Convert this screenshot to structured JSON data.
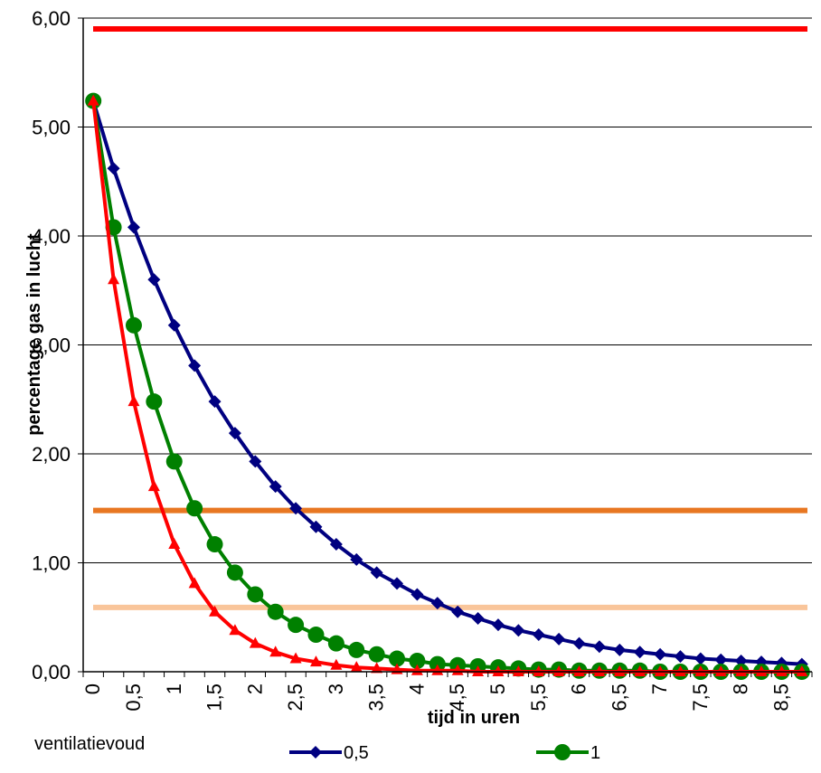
{
  "chart_data": {
    "type": "line",
    "xlabel": "tijd in uren",
    "ylabel": "percentage gas in lucht",
    "ylim": [
      0,
      6
    ],
    "yticks": [
      "0,00",
      "1,00",
      "2,00",
      "3,00",
      "4,00",
      "5,00",
      "6,00"
    ],
    "x": [
      0,
      0.25,
      0.5,
      0.75,
      1,
      1.25,
      1.5,
      1.75,
      2,
      2.25,
      2.5,
      2.75,
      3,
      3.25,
      3.5,
      3.75,
      4,
      4.25,
      4.5,
      4.75,
      5,
      5.25,
      5.5,
      5.75,
      6,
      6.25,
      6.5,
      6.75,
      7,
      7.25,
      7.5,
      7.75,
      8,
      8.25,
      8.5,
      8.75
    ],
    "xtick_labels": [
      "0",
      "",
      "0,5",
      "",
      "1",
      "",
      "1,5",
      "",
      "2",
      "",
      "2,5",
      "",
      "3",
      "",
      "3,5",
      "",
      "4",
      "",
      "4,5",
      "",
      "5",
      "",
      "5,5",
      "",
      "6",
      "",
      "6,5",
      "",
      "7",
      "",
      "7,5",
      "",
      "8",
      "",
      "8,5",
      ""
    ],
    "series": [
      {
        "name": "0,5",
        "color": "#000080",
        "marker": "diamond",
        "values": [
          5.24,
          4.62,
          4.08,
          3.6,
          3.18,
          2.81,
          2.48,
          2.19,
          1.93,
          1.7,
          1.5,
          1.33,
          1.17,
          1.03,
          0.91,
          0.81,
          0.71,
          0.63,
          0.55,
          0.49,
          0.43,
          0.38,
          0.34,
          0.3,
          0.26,
          0.23,
          0.2,
          0.18,
          0.16,
          0.14,
          0.12,
          0.11,
          0.1,
          0.09,
          0.08,
          0.07
        ]
      },
      {
        "name": "1",
        "color": "#008000",
        "marker": "circle",
        "values": [
          5.24,
          4.08,
          3.18,
          2.48,
          1.93,
          1.5,
          1.17,
          0.91,
          0.71,
          0.55,
          0.43,
          0.34,
          0.26,
          0.2,
          0.16,
          0.12,
          0.1,
          0.07,
          0.06,
          0.05,
          0.04,
          0.03,
          0.02,
          0.02,
          0.01,
          0.01,
          0.01,
          0.01,
          0.0,
          0.0,
          0.0,
          0.0,
          0.0,
          0.0,
          0.0,
          0.0
        ]
      },
      {
        "color": "#ff0000",
        "marker": "triangle",
        "values": [
          5.24,
          3.6,
          2.48,
          1.7,
          1.17,
          0.81,
          0.55,
          0.38,
          0.26,
          0.18,
          0.12,
          0.09,
          0.06,
          0.04,
          0.03,
          0.02,
          0.01,
          0.01,
          0.01,
          0.0,
          0.0,
          0.0,
          0.0,
          0.0,
          0.0,
          0.0,
          0.0,
          0.0,
          0.0,
          0.0,
          0.0,
          0.0,
          0.0,
          0.0,
          0.0,
          0.0
        ]
      }
    ],
    "reference_lines": [
      {
        "value": 5.9,
        "color": "#ff0000"
      },
      {
        "value": 1.48,
        "color": "#e87722"
      },
      {
        "value": 0.59,
        "color": "#f9c59a"
      }
    ],
    "grid": true,
    "legend": {
      "title": "ventilatievoud",
      "position": "bottom"
    }
  }
}
